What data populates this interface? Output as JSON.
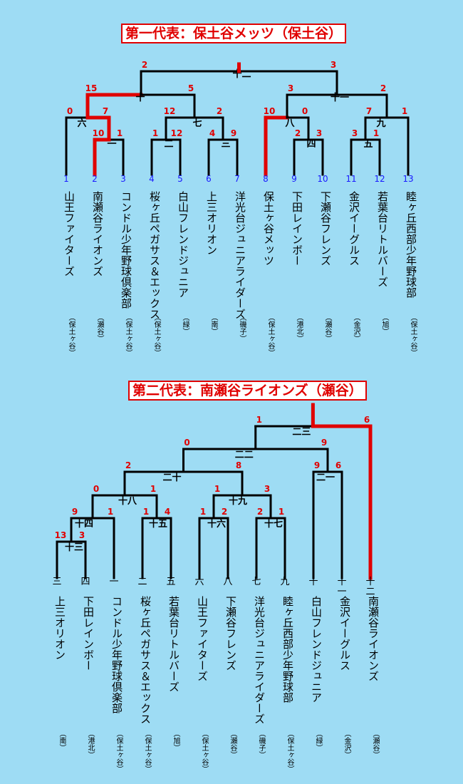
{
  "sections": [
    {
      "title": "第一代表：保土谷メッツ（保土谷）",
      "teams": [
        {
          "seed": "1",
          "name": "山王ファイターズ",
          "area": "（保土ヶ谷）"
        },
        {
          "seed": "2",
          "name": "南瀬谷ライオンズ",
          "area": "（瀬谷）"
        },
        {
          "seed": "3",
          "name": "コンドル少年野球倶楽部",
          "area": "（保土ヶ谷）"
        },
        {
          "seed": "4",
          "name": "桜ヶ丘ペガサス＆エックス",
          "area": "（保土ヶ谷）"
        },
        {
          "seed": "5",
          "name": "白山フレンドジュニア",
          "area": "（緑）"
        },
        {
          "seed": "6",
          "name": "上三オリオン",
          "area": "（南）"
        },
        {
          "seed": "7",
          "name": "洋光台ジュニアライダーズ",
          "area": "（磯子）"
        },
        {
          "seed": "8",
          "name": "保土ヶ谷メッツ",
          "area": "（保土ヶ谷）"
        },
        {
          "seed": "9",
          "name": "下田レインボー",
          "area": "（港北）"
        },
        {
          "seed": "10",
          "name": "下瀬谷フレンズ",
          "area": "（瀬谷）"
        },
        {
          "seed": "11",
          "name": "金沢イーグルス",
          "area": "（金沢）"
        },
        {
          "seed": "12",
          "name": "若葉台リトルバーズ",
          "area": "（旭）"
        },
        {
          "seed": "13",
          "name": "睦ヶ丘西部少年野球部",
          "area": "（保土ヶ谷）"
        }
      ],
      "matches": [
        {
          "label": "一",
          "a": "10",
          "b": "1"
        },
        {
          "label": "二",
          "a": "1",
          "b": "12"
        },
        {
          "label": "三",
          "a": "4",
          "b": "9"
        },
        {
          "label": "四",
          "a": "2",
          "b": "3"
        },
        {
          "label": "五",
          "a": "3",
          "b": "1"
        },
        {
          "label": "六",
          "a": "0",
          "b": "7"
        },
        {
          "label": "七",
          "a": "12",
          "b": "2"
        },
        {
          "label": "八",
          "a": "10",
          "b": "0"
        },
        {
          "label": "九",
          "a": "7",
          "b": "1"
        },
        {
          "label": "十",
          "a": "15",
          "b": "5"
        },
        {
          "label": "十一",
          "a": "3",
          "b": "2"
        },
        {
          "label": "十二",
          "a": "2",
          "b": "3"
        }
      ]
    },
    {
      "title": "第二代表：南瀬谷ライオンズ（瀬谷）",
      "teams": [
        {
          "seed": "三",
          "name": "上三オリオン",
          "area": "（南）"
        },
        {
          "seed": "四",
          "name": "下田レインボー",
          "area": "（港北）"
        },
        {
          "seed": "一",
          "name": "コンドル少年野球倶楽部",
          "area": "（保土ヶ谷）"
        },
        {
          "seed": "二",
          "name": "桜ヶ丘ペガサス＆エックス",
          "area": "（保土ヶ谷）"
        },
        {
          "seed": "五",
          "name": "若葉台リトルバーズ",
          "area": "（旭）"
        },
        {
          "seed": "六",
          "name": "山王ファイターズ",
          "area": "（保土ヶ谷）"
        },
        {
          "seed": "八",
          "name": "下瀬谷フレンズ",
          "area": "（瀬谷）"
        },
        {
          "seed": "七",
          "name": "洋光台ジュニアライダーズ",
          "area": "（磯子）"
        },
        {
          "seed": "九",
          "name": "睦ヶ丘西部少年野球部",
          "area": "（保土ヶ谷）"
        },
        {
          "seed": "十",
          "name": "白山フレンドジュニア",
          "area": "（緑）"
        },
        {
          "seed": "十一",
          "name": "金沢イーグルス",
          "area": "（金沢）"
        },
        {
          "seed": "十二",
          "name": "南瀬谷ライオンズ",
          "area": "（瀬谷）"
        }
      ],
      "matches": [
        {
          "label": "十三",
          "a": "13",
          "b": "3"
        },
        {
          "label": "十四",
          "a": "9",
          "b": "1"
        },
        {
          "label": "十五",
          "a": "1",
          "b": "4"
        },
        {
          "label": "十六",
          "a": "1",
          "b": "2"
        },
        {
          "label": "十七",
          "a": "2",
          "b": "1"
        },
        {
          "label": "十八",
          "a": "0",
          "b": "1"
        },
        {
          "label": "十九",
          "a": "1",
          "b": "3"
        },
        {
          "label": "二十",
          "a": "2",
          "b": "8"
        },
        {
          "label": "二一",
          "a": "9",
          "b": "6"
        },
        {
          "label": "二二",
          "a": "0",
          "b": "9"
        },
        {
          "label": "二三",
          "a": "1",
          "b": "6"
        }
      ]
    }
  ]
}
